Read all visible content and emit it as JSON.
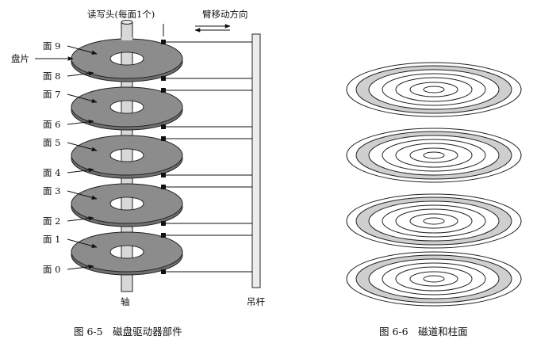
{
  "figure_5": {
    "caption": "图 6-5　磁盘驱动器部件",
    "head_label": "读写头(每面1个)",
    "arm_motion_label": "臂移动方向",
    "platter_label": "盘片",
    "spindle_label": "轴",
    "boom_label": "吊杆",
    "surface_labels": [
      "面 9",
      "面 8",
      "面 7",
      "面 6",
      "面 5",
      "面 4",
      "面 3",
      "面 2",
      "面 1",
      "面 0"
    ],
    "platter_count": 5,
    "platter_color": "#8c8c8c"
  },
  "figure_6": {
    "caption": "图 6-6　磁道和柱面",
    "stack_count": 4,
    "highlight_color": "#cfcfcf"
  }
}
